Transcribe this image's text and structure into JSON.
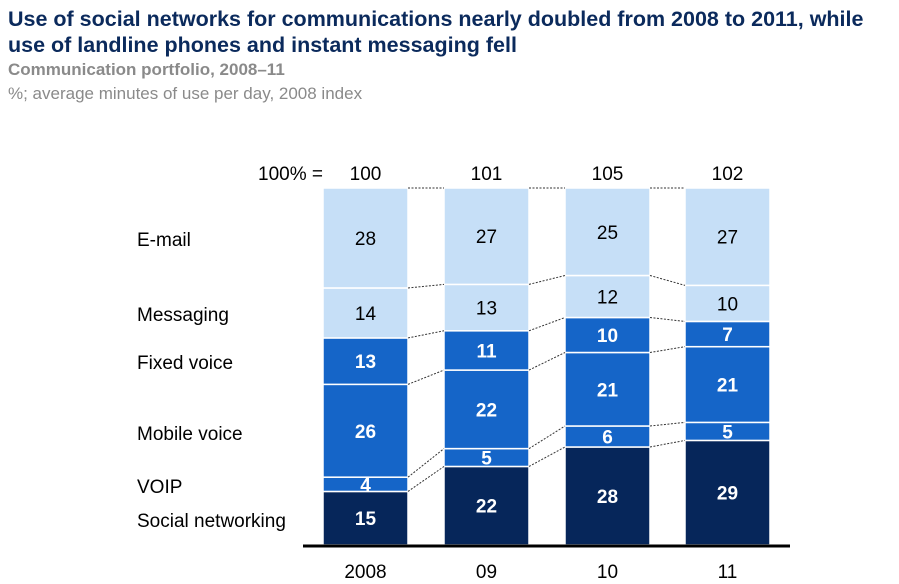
{
  "title": "Use of social networks for communications nearly doubled from 2008 to 2011, while use of landline phones and instant messaging fell",
  "subtitle": "Communication portfolio, 2008–11",
  "units_note": "%; average minutes of use per day, 2008 index",
  "chart_data": {
    "type": "bar",
    "stacked": "100%",
    "total_label": "100% =",
    "categories": [
      "2008",
      "09",
      "10",
      "11"
    ],
    "totals": [
      100,
      101,
      105,
      102
    ],
    "series": [
      {
        "name": "Social networking",
        "values": [
          15,
          22,
          28,
          29
        ],
        "color": "#06265a"
      },
      {
        "name": "VOIP",
        "values": [
          4,
          5,
          6,
          5
        ],
        "color": "#1565c8"
      },
      {
        "name": "Mobile voice",
        "values": [
          26,
          22,
          21,
          21
        ],
        "color": "#1565c8"
      },
      {
        "name": "Fixed voice",
        "values": [
          13,
          11,
          10,
          7
        ],
        "color": "#1565c8"
      },
      {
        "name": "Messaging",
        "values": [
          14,
          13,
          12,
          10
        ],
        "color": "#c6dff7"
      },
      {
        "name": "E-mail",
        "values": [
          28,
          27,
          25,
          27
        ],
        "color": "#c6dff7"
      }
    ],
    "legend": "left, inline series labels",
    "grid": false
  }
}
